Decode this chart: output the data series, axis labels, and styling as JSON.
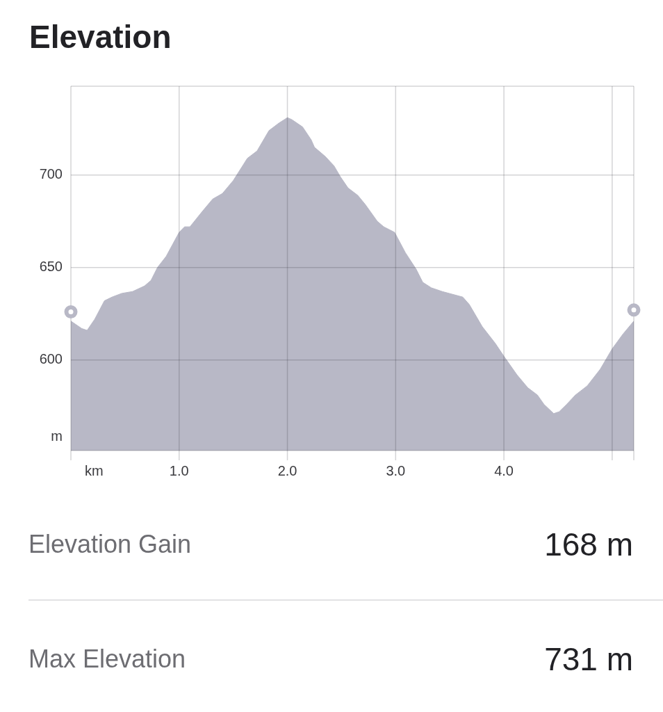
{
  "chart_data": {
    "type": "area",
    "title": "Elevation",
    "xlabel": "km",
    "ylabel": "m",
    "xlim": [
      0,
      5.2
    ],
    "xticks": [
      {
        "value": 0,
        "label": null
      },
      {
        "value": 1,
        "label": "1.0"
      },
      {
        "value": 2,
        "label": "2.0"
      },
      {
        "value": 3,
        "label": "3.0"
      },
      {
        "value": 4,
        "label": "4.0"
      },
      {
        "value": 5,
        "label": null
      }
    ],
    "ylim": [
      551,
      748
    ],
    "yticks": [
      600,
      650,
      700
    ],
    "grid": true,
    "series": [
      {
        "color": "#b8b8c6",
        "x": [
          0,
          0.1,
          0.15,
          0.22,
          0.31,
          0.38,
          0.47,
          0.57,
          0.68,
          0.74,
          0.8,
          0.88,
          1.0,
          1.05,
          1.1,
          1.21,
          1.31,
          1.4,
          1.5,
          1.63,
          1.72,
          1.83,
          1.92,
          2.0,
          2.04,
          2.14,
          2.22,
          2.25,
          2.35,
          2.43,
          2.49,
          2.56,
          2.65,
          2.72,
          2.83,
          2.89,
          2.99,
          3.09,
          3.19,
          3.25,
          3.33,
          3.43,
          3.62,
          3.68,
          3.8,
          3.92,
          4.0,
          4.12,
          4.22,
          4.31,
          4.37,
          4.46,
          4.51,
          4.58,
          4.66,
          4.77,
          4.89,
          5.0,
          5.1,
          5.2
        ],
        "values": [
          621,
          617,
          616,
          622,
          632,
          634,
          636,
          637,
          640,
          643,
          650,
          656,
          669,
          672,
          672,
          680,
          687,
          690,
          697,
          709,
          713,
          724,
          728,
          731,
          730,
          726,
          719,
          715,
          710,
          705,
          699,
          693,
          689,
          684,
          675,
          672,
          669,
          658,
          649,
          642,
          639,
          637,
          634,
          630,
          618,
          609,
          602,
          592,
          585,
          581,
          576,
          571,
          572,
          576,
          581,
          586,
          595,
          606,
          614,
          621
        ]
      },
      {
        "type": "scatter",
        "color": "#b8b8c6",
        "marker": "circle",
        "x": [
          0,
          5.2
        ],
        "values": [
          626,
          627
        ]
      }
    ],
    "annotations": [
      "Elevation Gain",
      "168 m",
      "Max Elevation",
      "731 m"
    ]
  }
}
